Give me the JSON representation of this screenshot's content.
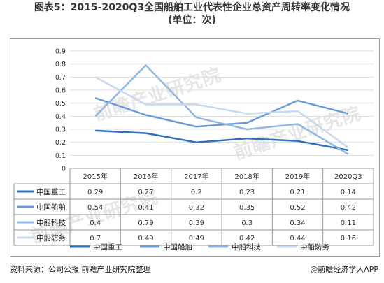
{
  "page": {
    "title_line1": "图表5：2015-2020Q3全国船舶工业代表性企业总资产周转率变化情况",
    "title_line2": "(单位：次)",
    "source": "资料来源：公司公报 前瞻产业研究院整理",
    "credit": "@前瞻经济学人APP",
    "watermark": "前瞻产业研究院"
  },
  "chart_data": {
    "type": "line",
    "categories": [
      "2015年",
      "2016年",
      "2017年",
      "2018年",
      "2019年",
      "2020Q3"
    ],
    "series": [
      {
        "name": "中国重工",
        "values": [
          0.29,
          0.27,
          0.2,
          0.23,
          0.21,
          0.14
        ],
        "color": "#2e6fbe",
        "value_labels": [
          "0.29",
          "0.27",
          "0.2",
          "0.23",
          "0.21",
          "0.14"
        ]
      },
      {
        "name": "中国船舶",
        "values": [
          0.54,
          0.41,
          0.32,
          0.35,
          0.52,
          0.42
        ],
        "color": "#6b9bd6",
        "value_labels": [
          "0.54",
          "0.41",
          "0.32",
          "0.35",
          "0.52",
          "0.42"
        ]
      },
      {
        "name": "中船科技",
        "values": [
          0.4,
          0.79,
          0.39,
          0.3,
          0.34,
          0.11
        ],
        "color": "#93b7e3",
        "value_labels": [
          "0.4",
          "0.79",
          "0.39",
          "0.3",
          "0.34",
          "0.11"
        ]
      },
      {
        "name": "中船防务",
        "values": [
          0.7,
          0.49,
          0.49,
          0.42,
          0.44,
          0.16
        ],
        "color": "#c5d9f1",
        "value_labels": [
          "0.7",
          "0.49",
          "0.49",
          "0.42",
          "0.44",
          "0.16"
        ]
      }
    ],
    "ylim": [
      0,
      0.9
    ],
    "yticks": [
      "0",
      "0.1",
      "0.2",
      "0.3",
      "0.4",
      "0.5",
      "0.6",
      "0.7",
      "0.8",
      "0.9"
    ],
    "grid": true,
    "legend_position": "bottom",
    "data_table": true
  }
}
